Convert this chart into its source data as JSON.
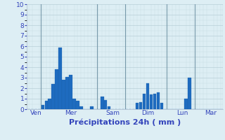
{
  "xlabel": "Précipitations 24h ( mm )",
  "background_color": "#ddeef4",
  "bar_color": "#1e6bbf",
  "bar_edge_color": "#1a5fa8",
  "grid_major_color": "#b8cfd8",
  "grid_minor_color": "#c8dde4",
  "ylim": [
    0,
    10
  ],
  "num_bars": 56,
  "values": [
    0.0,
    0.0,
    0.0,
    0.0,
    0.4,
    0.8,
    1.0,
    2.4,
    3.8,
    5.9,
    2.8,
    3.1,
    3.3,
    1.0,
    0.8,
    0.3,
    0.0,
    0.0,
    0.3,
    0.0,
    0.0,
    1.2,
    0.9,
    0.3,
    0.0,
    0.0,
    0.0,
    0.0,
    0.0,
    0.0,
    0.0,
    0.6,
    0.7,
    1.5,
    2.5,
    1.4,
    1.5,
    1.6,
    0.6,
    0.0,
    0.0,
    0.0,
    0.0,
    0.0,
    0.0,
    1.0,
    3.0,
    0.0,
    0.0,
    0.0,
    0.0,
    0.0,
    0.0,
    0.0,
    0.0,
    0.0
  ],
  "day_sep_positions": [
    4,
    20,
    28,
    40,
    48
  ],
  "day_sep_color": "#7799aa",
  "tick_positions": [
    2,
    12,
    24,
    34,
    44,
    52
  ],
  "tick_labels": [
    "Ven",
    "Mer",
    "Sam",
    "Dim",
    "Lun",
    "Mar"
  ],
  "yticks": [
    0,
    1,
    2,
    3,
    4,
    5,
    6,
    7,
    8,
    9,
    10
  ],
  "text_color": "#3344bb",
  "xlabel_fontsize": 8,
  "tick_fontsize": 6.5,
  "ylabel_fontsize": 7
}
